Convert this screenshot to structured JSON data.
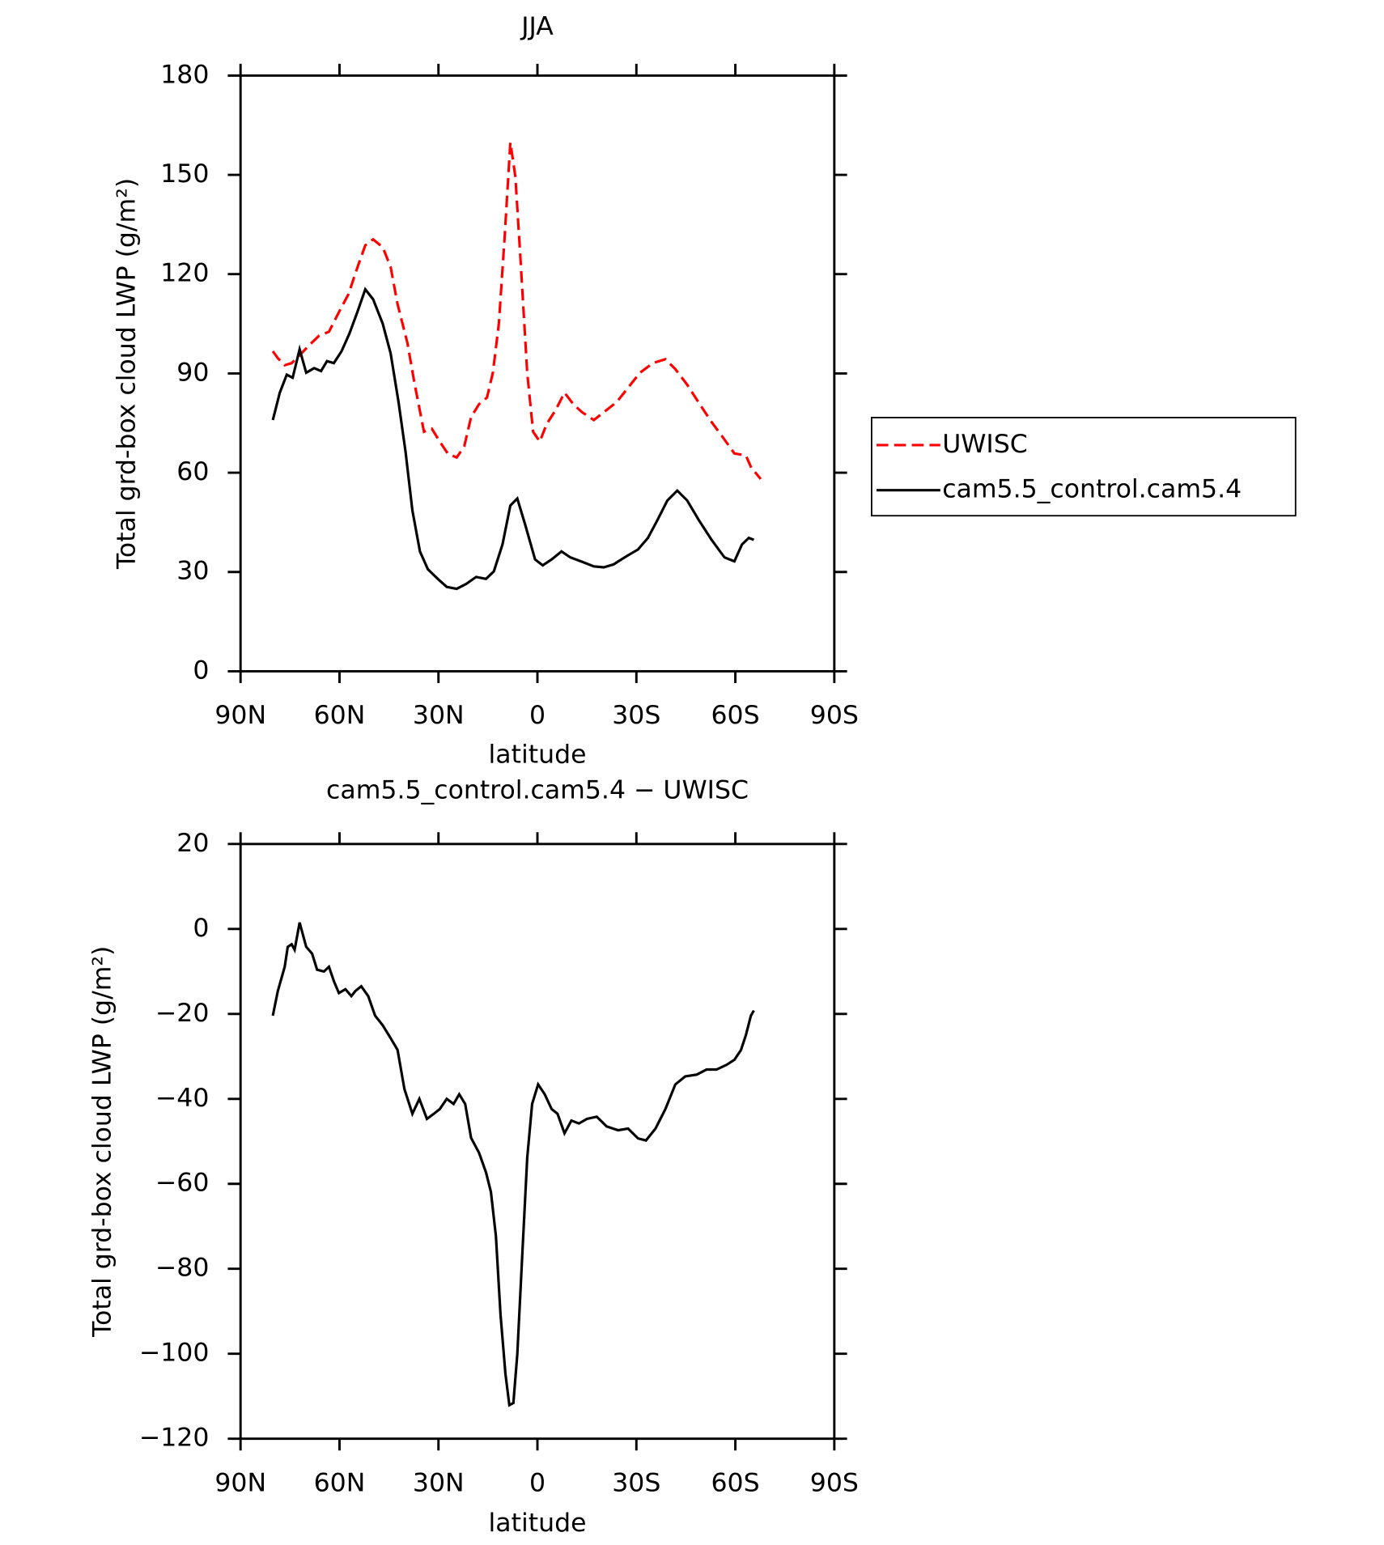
{
  "chart_data": [
    {
      "type": "line",
      "title": "JJA",
      "xlabel": "latitude",
      "ylabel": "Total grd-box cloud LWP (g/m²)",
      "xlim": [
        90,
        -90
      ],
      "ylim": [
        0,
        180
      ],
      "xticks": [
        {
          "value": 90,
          "label": "90N"
        },
        {
          "value": 60,
          "label": "60N"
        },
        {
          "value": 30,
          "label": "30N"
        },
        0,
        {
          "value": -30,
          "label": "30S"
        },
        {
          "value": -60,
          "label": "60S"
        },
        {
          "value": -90,
          "label": "90S"
        }
      ],
      "yticks": [
        0,
        30,
        60,
        90,
        120,
        150,
        180
      ],
      "legend": "right",
      "series": [
        {
          "name": "UWISC",
          "color": "#ff0000",
          "dash": "dashed",
          "x": [
            80.2,
            78.7,
            76.6,
            74.5,
            72.1,
            69.2,
            66.2,
            63.2,
            60.2,
            57.3,
            54.3,
            52.2,
            49.8,
            46.9,
            44.5,
            42.4,
            39.4,
            37.3,
            34.4,
            32.0,
            29.6,
            27.2,
            24.5,
            22.2,
            20.1,
            17.7,
            15.3,
            13.5,
            11.7,
            9.9,
            8.2,
            6.7,
            5.2,
            3.1,
            1.3,
            -0.7,
            -2.8,
            -5.5,
            -8.2,
            -10.9,
            -13.5,
            -17.1,
            -20.1,
            -24.0,
            -27.5,
            -31.1,
            -35.0,
            -38.8,
            -41.8,
            -45.4,
            -49.2,
            -52.8,
            -56.7,
            -59.7,
            -63.2,
            -65.0,
            -66.2,
            -67.7
          ],
          "values": [
            96.7,
            94.6,
            92.5,
            93.1,
            95.5,
            98.5,
            101.4,
            102.6,
            108.5,
            113.9,
            122.8,
            128.7,
            130.5,
            128.1,
            122.2,
            110.9,
            99.1,
            87.2,
            72.4,
            73.3,
            69.4,
            65.8,
            64.6,
            67.9,
            76.8,
            80.7,
            82.7,
            90.2,
            105.0,
            131.7,
            159.8,
            149.5,
            125.7,
            90.2,
            72.4,
            69.4,
            74.7,
            78.9,
            84.2,
            80.7,
            78.3,
            75.9,
            78.3,
            81.3,
            85.7,
            90.2,
            93.1,
            94.3,
            91.3,
            86.6,
            80.7,
            75.3,
            70.0,
            65.8,
            65.2,
            61.1,
            59.9,
            58.1
          ]
        },
        {
          "name": "cam5.5_control.cam5.4",
          "color": "#000000",
          "dash": "solid",
          "x": [
            80.2,
            78.1,
            76.0,
            74.2,
            72.1,
            70.1,
            67.7,
            65.6,
            63.8,
            61.7,
            59.4,
            57.0,
            54.6,
            52.2,
            49.8,
            46.9,
            44.5,
            42.1,
            40.0,
            37.9,
            35.6,
            33.2,
            30.2,
            27.5,
            24.5,
            21.6,
            18.6,
            15.6,
            13.2,
            10.6,
            8.2,
            6.1,
            3.7,
            0.7,
            -1.6,
            -4.3,
            -7.3,
            -10.0,
            -13.2,
            -17.1,
            -20.1,
            -23.1,
            -26.9,
            -30.5,
            -33.5,
            -36.4,
            -39.4,
            -42.4,
            -45.4,
            -48.9,
            -52.8,
            -56.7,
            -59.7,
            -62.0,
            -64.1,
            -65.6
          ],
          "values": [
            75.9,
            84.2,
            89.6,
            88.7,
            97.3,
            90.2,
            91.6,
            90.7,
            93.7,
            93.1,
            96.7,
            102.0,
            108.5,
            115.4,
            112.4,
            105.0,
            96.1,
            81.3,
            66.4,
            48.6,
            36.2,
            30.8,
            27.9,
            25.5,
            24.9,
            26.4,
            28.5,
            27.9,
            30.2,
            38.3,
            50.1,
            52.2,
            44.2,
            33.8,
            32.0,
            33.8,
            36.2,
            34.4,
            33.2,
            31.7,
            31.4,
            32.3,
            34.7,
            36.8,
            40.3,
            45.7,
            51.6,
            54.6,
            51.6,
            45.7,
            39.7,
            34.4,
            33.2,
            38.3,
            40.3,
            39.7
          ]
        }
      ]
    },
    {
      "type": "line",
      "title": "cam5.5_control.cam5.4 − UWISC",
      "xlabel": "latitude",
      "ylabel": "Total grd-box cloud LWP (g/m²)",
      "xlim": [
        90,
        -90
      ],
      "ylim": [
        -120,
        20
      ],
      "xticks": [
        {
          "value": 90,
          "label": "90N"
        },
        {
          "value": 60,
          "label": "60N"
        },
        {
          "value": 30,
          "label": "30N"
        },
        0,
        {
          "value": -30,
          "label": "30S"
        },
        {
          "value": -60,
          "label": "60S"
        },
        {
          "value": -90,
          "label": "90S"
        }
      ],
      "yticks": [
        {
          "value": -120,
          "label": "−120"
        },
        {
          "value": -100,
          "label": "−100"
        },
        {
          "value": -80,
          "label": "−80"
        },
        {
          "value": -60,
          "label": "−60"
        },
        {
          "value": -40,
          "label": "−40"
        },
        {
          "value": -20,
          "label": "−20"
        },
        0,
        20
      ],
      "series": [
        {
          "color": "#000000",
          "dash": "solid",
          "x": [
            80.2,
            78.7,
            76.6,
            75.7,
            74.5,
            73.6,
            72.1,
            70.1,
            68.3,
            66.8,
            64.7,
            63.2,
            61.7,
            60.2,
            58.2,
            56.4,
            55.2,
            53.4,
            51.3,
            49.2,
            46.9,
            44.5,
            42.4,
            40.3,
            37.9,
            35.8,
            33.5,
            31.4,
            29.6,
            27.5,
            25.4,
            23.7,
            21.9,
            20.1,
            17.7,
            15.6,
            14.1,
            12.6,
            11.2,
            9.7,
            8.5,
            7.3,
            6.1,
            4.6,
            3.1,
            1.6,
            -0.2,
            -2.2,
            -4.3,
            -6.1,
            -8.2,
            -10.3,
            -12.6,
            -15.0,
            -18.0,
            -21.0,
            -24.5,
            -27.5,
            -30.5,
            -32.9,
            -35.8,
            -38.8,
            -41.8,
            -44.8,
            -48.3,
            -51.3,
            -54.3,
            -57.3,
            -59.7,
            -61.7,
            -63.2,
            -64.7,
            -65.6
          ],
          "values": [
            -20.4,
            -14.6,
            -8.9,
            -4.2,
            -3.6,
            -4.9,
            1.5,
            -4.2,
            -5.8,
            -9.6,
            -10.0,
            -8.9,
            -12.3,
            -15.1,
            -14.2,
            -15.8,
            -14.6,
            -13.5,
            -15.8,
            -20.4,
            -22.7,
            -25.7,
            -28.5,
            -37.7,
            -43.5,
            -40.0,
            -44.7,
            -43.5,
            -42.4,
            -40.0,
            -41.2,
            -38.9,
            -41.2,
            -49.2,
            -52.7,
            -57.3,
            -61.9,
            -72.3,
            -90.8,
            -104.7,
            -112.1,
            -111.6,
            -100.1,
            -77.0,
            -53.9,
            -41.2,
            -36.6,
            -38.9,
            -42.4,
            -43.5,
            -48.1,
            -45.1,
            -45.8,
            -44.7,
            -44.2,
            -46.5,
            -47.4,
            -47.0,
            -49.3,
            -49.8,
            -47.0,
            -42.4,
            -36.6,
            -34.7,
            -34.3,
            -33.1,
            -33.1,
            -32.0,
            -30.8,
            -28.5,
            -25.0,
            -20.4,
            -19.2
          ]
        }
      ]
    }
  ]
}
